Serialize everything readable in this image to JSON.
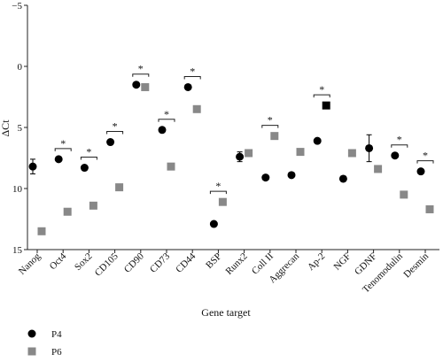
{
  "chart_data": {
    "type": "scatter",
    "title": "",
    "xlabel": "Gene target",
    "ylabel": "ΔCt",
    "ylim": [
      15,
      -5
    ],
    "y_inverted": true,
    "y_ticks": [
      -5,
      0,
      5,
      10,
      15
    ],
    "y_tick_labels": [
      "−5",
      "0",
      "5",
      "10",
      "15"
    ],
    "grid": false,
    "legend_position": "bottom-left",
    "categories": [
      "Nanog",
      "Oct4",
      "Sox2",
      "CD105",
      "CD90",
      "CD73",
      "CD44",
      "BSP",
      "Runx2",
      "Coll II",
      "Aggrecan",
      "Ap-2",
      "NGF",
      "GDNF",
      "Tenomodulin",
      "Desmin"
    ],
    "series": [
      {
        "name": "P4",
        "marker": "circle",
        "color": "#000000",
        "values": [
          8.2,
          7.6,
          8.3,
          6.2,
          1.5,
          5.2,
          1.7,
          12.9,
          7.4,
          9.1,
          8.9,
          6.1,
          9.2,
          6.7,
          7.3,
          8.6
        ],
        "error": [
          0.6,
          null,
          null,
          null,
          null,
          null,
          null,
          null,
          0.4,
          null,
          null,
          null,
          null,
          1.1,
          null,
          null
        ]
      },
      {
        "name": "P6",
        "marker": "square",
        "color": "#888888",
        "values": [
          13.5,
          11.9,
          11.4,
          9.9,
          1.7,
          8.2,
          3.5,
          11.1,
          7.1,
          5.7,
          7.0,
          3.2,
          7.1,
          8.4,
          10.5,
          11.7
        ],
        "error": [
          null,
          null,
          null,
          null,
          null,
          null,
          null,
          null,
          null,
          null,
          null,
          null,
          null,
          null,
          null,
          null
        ]
      }
    ],
    "significance_marker": "*",
    "significant_categories": [
      "Oct4",
      "Sox2",
      "CD105",
      "CD90",
      "CD73",
      "CD44",
      "BSP",
      "Coll II",
      "Ap-2",
      "Tenomodulin",
      "Desmin"
    ]
  }
}
